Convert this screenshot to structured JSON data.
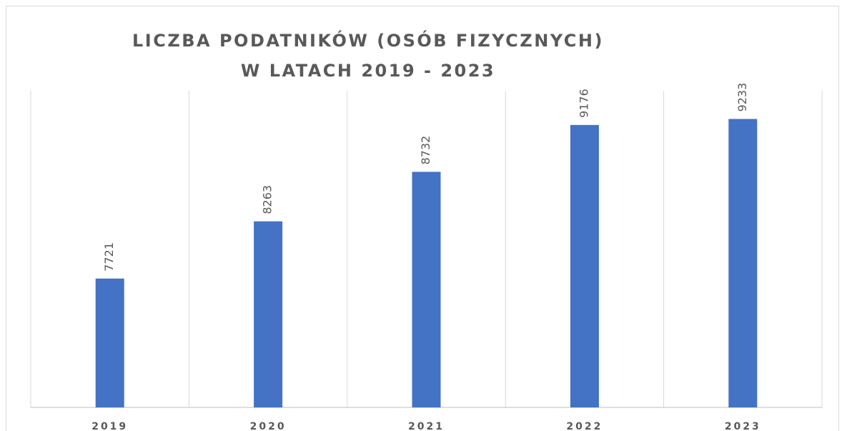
{
  "chart_data": {
    "type": "bar",
    "title": [
      "LICZBA PODATNIKÓW (OSÓB FIZYCZNYCH)",
      "W LATACH 2019 - 2023"
    ],
    "categories": [
      "2019",
      "2020",
      "2021",
      "2022",
      "2023"
    ],
    "values": [
      7721,
      8263,
      8732,
      9176,
      9233
    ],
    "color": "#4472c4",
    "ylim": [
      6500,
      9500
    ],
    "grid": false
  }
}
